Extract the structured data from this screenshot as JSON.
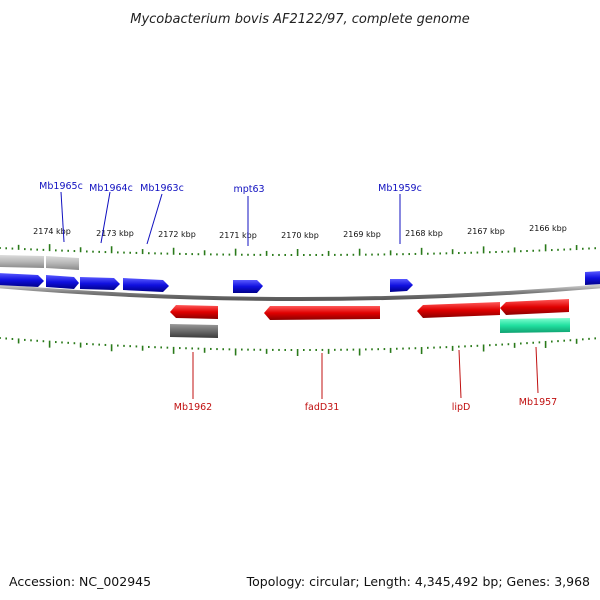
{
  "title": "Mycobacterium bovis AF2122/97, complete genome",
  "footer": {
    "accession": "Accession: NC_002945",
    "topology": "Topology: circular; Length: 4,345,492 bp; Genes: 3,968"
  },
  "colors": {
    "forward_gene": "#1010e0",
    "reverse_gene": "#e00000",
    "tick": "#2a7a1a",
    "backbone": "#8a8a8a",
    "label_top": "#1010c0",
    "label_bottom": "#c01010",
    "grey_feature": "#6a6a6a",
    "light_grey_feature": "#b8b8b8",
    "teal_feature": "#20e0a0"
  },
  "kbp_labels": [
    "2174 kbp",
    "2173 kbp",
    "2172 kbp",
    "2171 kbp",
    "2170 kbp",
    "2169 kbp",
    "2168 kbp",
    "2167 kbp",
    "2166 kbp"
  ],
  "top_gene_labels": [
    "Mb1965c",
    "Mb1964c",
    "Mb1963c",
    "mpt63",
    "Mb1959c"
  ],
  "bottom_gene_labels": [
    "Mb1962",
    "fadD31",
    "lipD",
    "Mb1957"
  ]
}
